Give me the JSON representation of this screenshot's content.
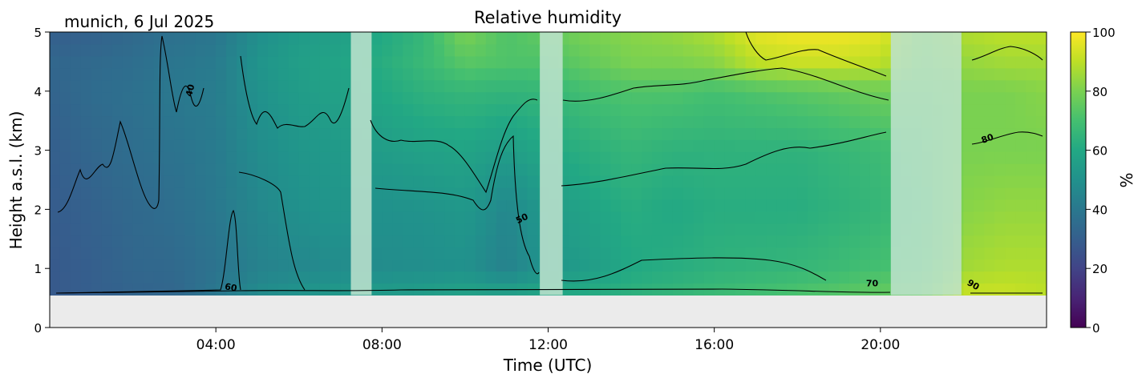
{
  "chart_data": {
    "type": "heatmap",
    "location_label": "munich, 6 Jul 2025",
    "title": "Relative humidity",
    "xlabel": "Time (UTC)",
    "ylabel": "Height a.s.l. (km)",
    "xlim_hours": [
      0,
      24
    ],
    "ylim_km": [
      0,
      5
    ],
    "x_ticks": [
      {
        "hour": 4,
        "label": "04:00"
      },
      {
        "hour": 8,
        "label": "08:00"
      },
      {
        "hour": 12,
        "label": "12:00"
      },
      {
        "hour": 16,
        "label": "16:00"
      },
      {
        "hour": 20,
        "label": "20:00"
      }
    ],
    "y_ticks": [
      0,
      1,
      2,
      3,
      4,
      5
    ],
    "colorbar": {
      "label": "%",
      "range": [
        0,
        100
      ],
      "ticks": [
        0,
        20,
        40,
        60,
        80,
        100
      ],
      "colormap": "viridis"
    },
    "data_floor_km": 0.55,
    "colors": {
      "ground_fill": "#ebebeb",
      "gap_fill": "#bfe3cf",
      "contour_line": "#000000"
    },
    "contour_labels": [
      {
        "text": "40",
        "hour": 3.45,
        "km": 4.0,
        "angle": -75
      },
      {
        "text": "60",
        "hour": 4.35,
        "km": 0.63,
        "angle": 10
      },
      {
        "text": "50",
        "hour": 11.4,
        "km": 1.8,
        "angle": -25
      },
      {
        "text": "70",
        "hour": 19.8,
        "km": 0.7,
        "angle": 0
      },
      {
        "text": "80",
        "hour": 22.6,
        "km": 3.15,
        "angle": -20
      },
      {
        "text": "90",
        "hour": 22.2,
        "km": 0.68,
        "angle": 30
      }
    ],
    "missing_data_intervals_hours": [
      [
        7.25,
        7.75
      ],
      [
        11.8,
        12.35
      ],
      [
        20.25,
        21.95
      ]
    ],
    "rh_profiles": [
      {
        "hour": 0.0,
        "values": [
          28,
          28,
          29,
          30,
          32,
          33,
          30
        ]
      },
      {
        "hour": 1.0,
        "values": [
          30,
          30,
          31,
          33,
          35,
          34,
          31
        ]
      },
      {
        "hour": 2.0,
        "values": [
          32,
          33,
          34,
          36,
          37,
          36,
          34
        ]
      },
      {
        "hour": 3.0,
        "values": [
          33,
          34,
          36,
          38,
          40,
          39,
          37
        ]
      },
      {
        "hour": 4.0,
        "values": [
          40,
          38,
          40,
          41,
          42,
          41,
          39
        ]
      },
      {
        "hour": 5.0,
        "values": [
          48,
          44,
          46,
          48,
          50,
          51,
          49
        ]
      },
      {
        "hour": 6.0,
        "values": [
          52,
          46,
          50,
          52,
          55,
          56,
          54
        ]
      },
      {
        "hour": 7.0,
        "values": [
          54,
          48,
          52,
          54,
          57,
          58,
          56
        ]
      },
      {
        "hour": 8.0,
        "values": [
          55,
          48,
          50,
          55,
          60,
          62,
          60
        ]
      },
      {
        "hour": 9.0,
        "values": [
          56,
          49,
          51,
          57,
          64,
          67,
          66
        ]
      },
      {
        "hour": 10.0,
        "values": [
          58,
          50,
          53,
          58,
          66,
          74,
          80
        ]
      },
      {
        "hour": 11.0,
        "values": [
          58,
          44,
          46,
          55,
          65,
          72,
          72
        ]
      },
      {
        "hour": 12.0,
        "values": [
          60,
          52,
          54,
          60,
          66,
          72,
          76
        ]
      },
      {
        "hour": 13.0,
        "values": [
          62,
          55,
          58,
          63,
          70,
          76,
          80
        ]
      },
      {
        "hour": 14.0,
        "values": [
          64,
          60,
          62,
          66,
          72,
          80,
          82
        ]
      },
      {
        "hour": 15.0,
        "values": [
          66,
          62,
          60,
          64,
          72,
          80,
          84
        ]
      },
      {
        "hour": 16.0,
        "values": [
          68,
          64,
          62,
          64,
          70,
          82,
          88
        ]
      },
      {
        "hour": 17.0,
        "values": [
          70,
          65,
          62,
          64,
          72,
          90,
          96
        ]
      },
      {
        "hour": 18.0,
        "values": [
          72,
          66,
          62,
          64,
          74,
          92,
          98
        ]
      },
      {
        "hour": 19.0,
        "values": [
          74,
          68,
          64,
          66,
          76,
          92,
          98
        ]
      },
      {
        "hour": 20.0,
        "values": [
          76,
          70,
          66,
          68,
          78,
          90,
          96
        ]
      },
      {
        "hour": 21.0,
        "values": [
          78,
          72,
          70,
          72,
          76,
          80,
          82
        ]
      },
      {
        "hour": 22.0,
        "values": [
          92,
          86,
          82,
          80,
          80,
          84,
          88
        ]
      },
      {
        "hour": 23.0,
        "values": [
          92,
          88,
          84,
          80,
          80,
          86,
          90
        ]
      },
      {
        "hour": 24.0,
        "values": [
          90,
          88,
          84,
          80,
          82,
          86,
          90
        ]
      }
    ],
    "rh_profile_heights_km": [
      0.55,
      1.0,
      2.0,
      3.0,
      4.0,
      4.5,
      5.0
    ]
  }
}
